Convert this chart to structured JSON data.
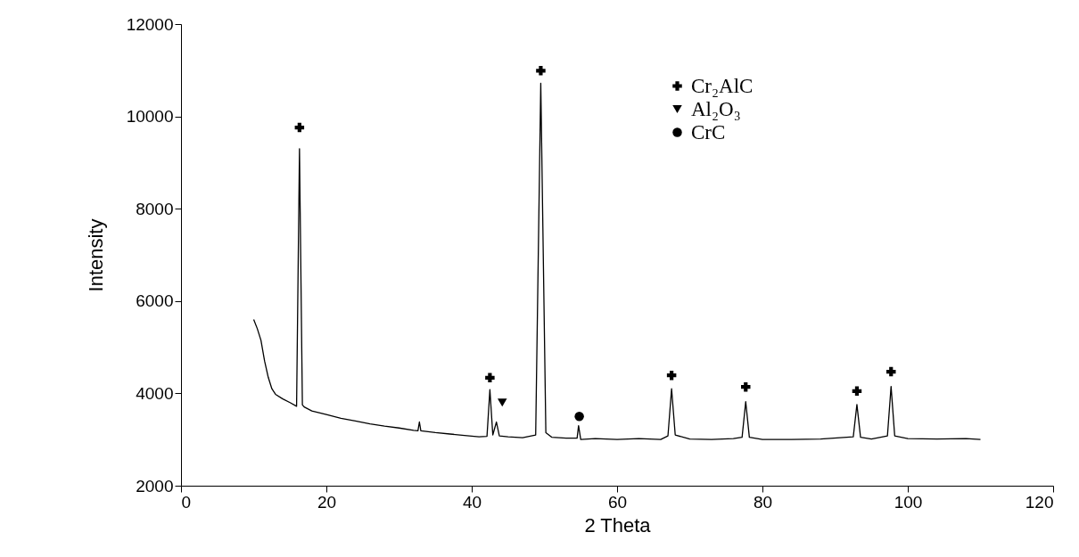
{
  "chart_data": {
    "type": "line",
    "xlabel": "2 Theta",
    "ylabel": "Intensity",
    "xlim": [
      0,
      120
    ],
    "xticks": [
      0,
      20,
      40,
      60,
      80,
      100,
      120
    ],
    "ylim": [
      2000,
      12000
    ],
    "yticks": [
      2000,
      4000,
      6000,
      8000,
      10000,
      12000
    ],
    "grid": false,
    "legend": "top right",
    "series": [
      {
        "color": "#000000",
        "marker": "none",
        "x": [
          10,
          10.5,
          11,
          11.5,
          12,
          12.5,
          13,
          14,
          15,
          15.9,
          16.3,
          16.7,
          17,
          18,
          20,
          22,
          24,
          26,
          28,
          30,
          32,
          32.6,
          32.8,
          33,
          35,
          37,
          39,
          41,
          42.1,
          42.5,
          42.9,
          43.4,
          43.8,
          45,
          47,
          48.8,
          49.5,
          50.2,
          51,
          53,
          54.5,
          54.7,
          55,
          57,
          60,
          63,
          66,
          67,
          67.5,
          68,
          70,
          73,
          76,
          77.2,
          77.7,
          78.2,
          80,
          84,
          88,
          92.5,
          93,
          93.5,
          95,
          97.2,
          97.7,
          98.2,
          100,
          104,
          108,
          110
        ],
        "values": [
          5600,
          5400,
          5150,
          4700,
          4350,
          4100,
          3980,
          3880,
          3800,
          3720,
          9300,
          3750,
          3700,
          3620,
          3540,
          3460,
          3400,
          3340,
          3290,
          3250,
          3200,
          3190,
          3380,
          3190,
          3150,
          3120,
          3090,
          3060,
          3070,
          4080,
          3100,
          3380,
          3080,
          3060,
          3040,
          3100,
          10720,
          3150,
          3050,
          3030,
          3030,
          3300,
          3000,
          3020,
          3000,
          3020,
          3000,
          3080,
          4100,
          3100,
          3010,
          3000,
          3020,
          3050,
          3820,
          3050,
          3000,
          3000,
          3010,
          3060,
          3760,
          3050,
          3010,
          3080,
          4150,
          3080,
          3020,
          3010,
          3020,
          3000
        ]
      },
      {
        "type": "scatter",
        "name": "Cr₂AlC",
        "color": "#000000",
        "marker": "cross",
        "x": [
          16.3,
          42.5,
          49.5,
          67.5,
          77.7,
          93,
          97.7
        ],
        "values": [
          9760,
          4340,
          10990,
          4390,
          4140,
          4050,
          4470
        ]
      },
      {
        "type": "scatter",
        "name": "Al₂O₃",
        "color": "#000000",
        "marker": "triangle",
        "x": [
          44.2
        ],
        "values": [
          3800
        ]
      },
      {
        "type": "scatter",
        "name": "CrC",
        "color": "#000000",
        "marker": "circle",
        "x": [
          54.8
        ],
        "values": [
          3500
        ]
      }
    ]
  }
}
